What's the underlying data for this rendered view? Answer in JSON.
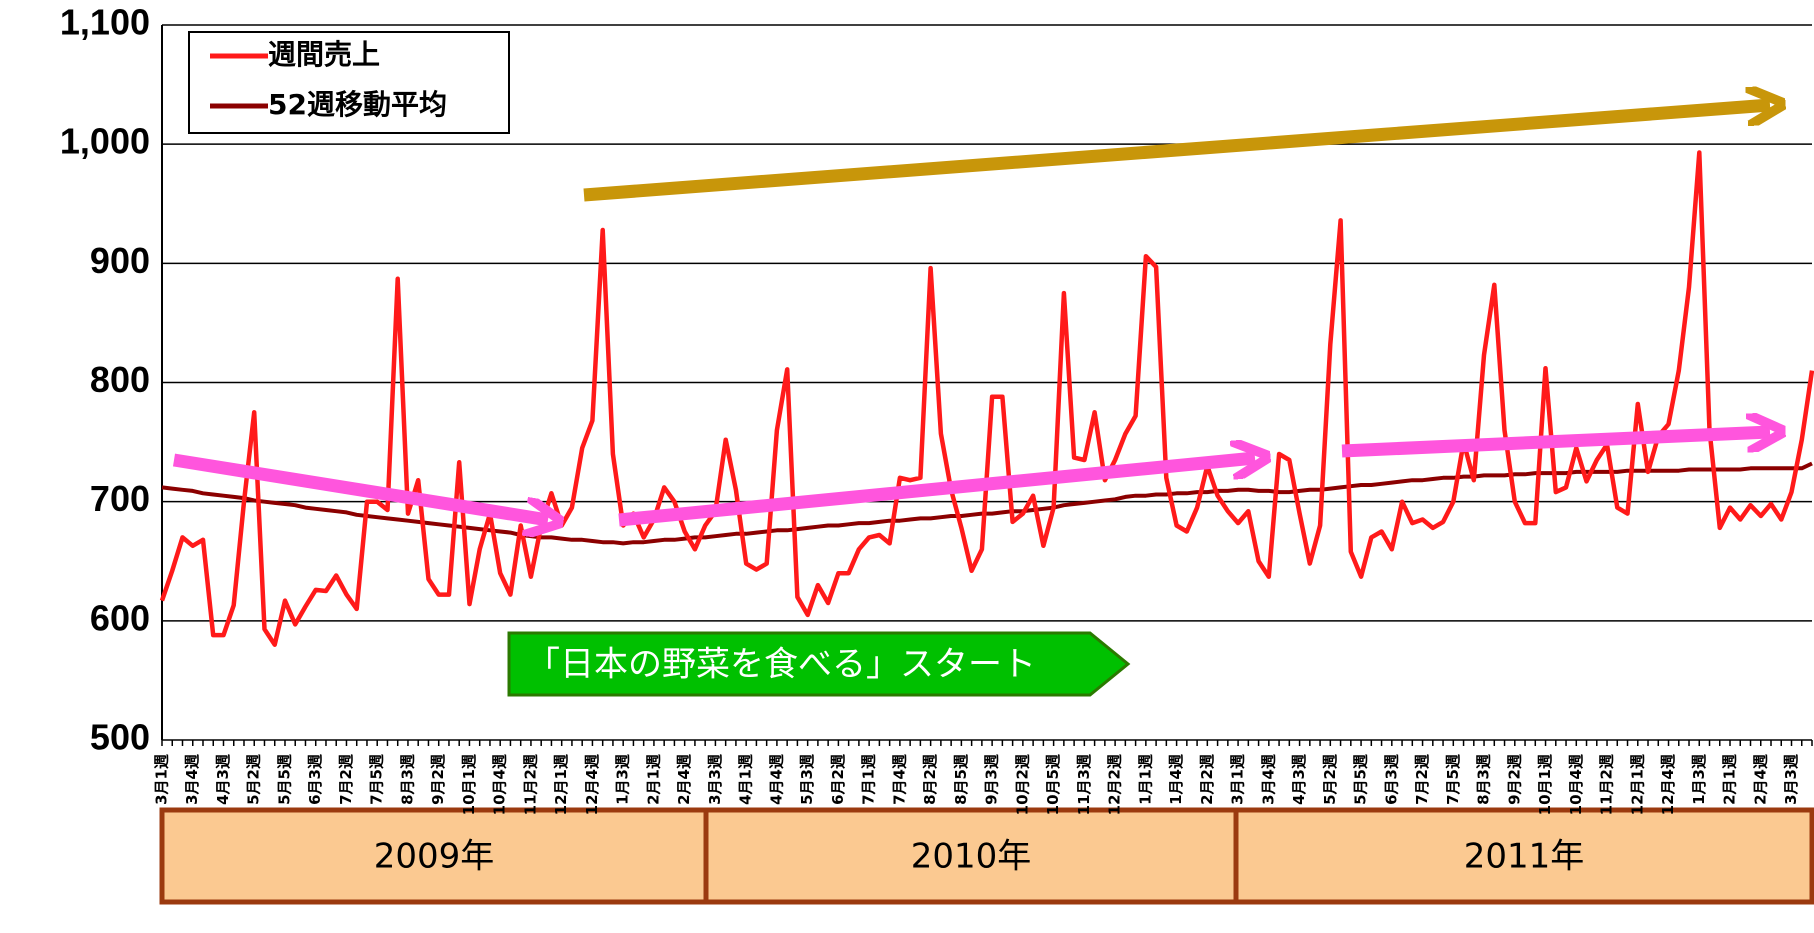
{
  "chart_data": {
    "type": "line",
    "ylim": [
      500,
      1100
    ],
    "yticks": [
      500,
      600,
      700,
      800,
      900,
      {
        "value": 1000,
        "label": "1,000"
      },
      {
        "value": 1100,
        "label": "1,100"
      }
    ],
    "grid": true,
    "legend": "upper left",
    "annotation": "「日本の野菜を食べる」スタート",
    "years": [
      "2009年",
      "2010年",
      "2011年"
    ],
    "categories": [
      "3月1週",
      null,
      null,
      "3月4週",
      null,
      null,
      "4月3週",
      null,
      null,
      "5月2週",
      null,
      null,
      "5月5週",
      null,
      null,
      "6月3週",
      null,
      null,
      "7月2週",
      null,
      null,
      "7月5週",
      null,
      null,
      "8月3週",
      null,
      null,
      "9月2週",
      null,
      null,
      "10月1週",
      null,
      null,
      "10月4週",
      null,
      null,
      "11月2週",
      null,
      null,
      "12月1週",
      null,
      null,
      "12月4週",
      null,
      null,
      "1月3週",
      null,
      null,
      "2月1週",
      null,
      null,
      "2月4週",
      null,
      null,
      "3月3週",
      null,
      null,
      "4月1週",
      null,
      null,
      "4月4週",
      null,
      null,
      "5月3週",
      null,
      null,
      "6月2週",
      null,
      null,
      "7月1週",
      null,
      null,
      "7月4週",
      null,
      null,
      "8月2週",
      null,
      null,
      "8月5週",
      null,
      null,
      "9月3週",
      null,
      null,
      "10月2週",
      null,
      null,
      "10月5週",
      null,
      null,
      "11月3週",
      null,
      null,
      "12月2週",
      null,
      null,
      "1月1週",
      null,
      null,
      "1月4週",
      null,
      null,
      "2月2週",
      null,
      null,
      "3月1週",
      null,
      null,
      "3月4週",
      null,
      null,
      "4月3週",
      null,
      null,
      "5月2週",
      null,
      null,
      "5月5週",
      null,
      null,
      "6月3週",
      null,
      null,
      "7月2週",
      null,
      null,
      "7月5週",
      null,
      null,
      "8月3週",
      null,
      null,
      "9月2週",
      null,
      null,
      "10月1週",
      null,
      null,
      "10月4週",
      null,
      null,
      "11月2週",
      null,
      null,
      "12月1週",
      null,
      null,
      "12月4週",
      null,
      null,
      "1月3週",
      null,
      null,
      "2月1週",
      null,
      null,
      "2月4週",
      null,
      null,
      "3月3週",
      null,
      null
    ],
    "series": [
      {
        "name": "週間売上",
        "color": "#ff1a1a",
        "values": [
          617,
          642,
          670,
          663,
          668,
          588,
          588,
          613,
          700,
          775,
          593,
          580,
          617,
          597,
          612,
          626,
          625,
          638,
          622,
          610,
          700,
          700,
          693,
          887,
          690,
          718,
          635,
          622,
          622,
          733,
          614,
          660,
          690,
          640,
          622,
          680,
          637,
          680,
          707,
          680,
          695,
          745,
          768,
          928,
          740,
          680,
          690,
          670,
          685,
          712,
          700,
          675,
          660,
          680,
          692,
          752,
          710,
          648,
          643,
          648,
          760,
          811,
          620,
          605,
          630,
          615,
          640,
          640,
          660,
          670,
          672,
          665,
          720,
          718,
          720,
          896,
          757,
          710,
          678,
          642,
          660,
          788,
          788,
          683,
          690,
          705,
          663,
          695,
          875,
          737,
          735,
          775,
          718,
          735,
          757,
          772,
          906,
          897,
          720,
          680,
          675,
          695,
          730,
          705,
          692,
          682,
          692,
          650,
          637,
          740,
          735,
          690,
          648,
          680,
          832,
          936,
          658,
          637,
          670,
          675,
          660,
          700,
          682,
          685,
          678,
          683,
          700,
          750,
          718,
          823,
          882,
          760,
          700,
          682,
          682,
          812,
          708,
          712,
          745,
          717,
          735,
          748,
          695,
          690,
          782,
          725,
          755,
          765,
          810,
          880,
          993,
          760,
          678,
          695,
          685,
          697,
          688,
          698,
          685,
          708,
          752,
          810
        ]
      },
      {
        "name": "52週移動平均",
        "color": "#8b0000",
        "values": [
          712,
          711,
          710,
          709,
          707,
          706,
          705,
          704,
          703,
          701,
          700,
          699,
          698,
          697,
          695,
          694,
          693,
          692,
          691,
          689,
          688,
          687,
          686,
          685,
          684,
          683,
          682,
          681,
          680,
          679,
          678,
          677,
          676,
          675,
          674,
          672,
          671,
          670,
          670,
          669,
          668,
          668,
          667,
          666,
          666,
          665,
          666,
          666,
          667,
          668,
          668,
          669,
          670,
          670,
          671,
          672,
          673,
          673,
          674,
          675,
          676,
          676,
          677,
          678,
          679,
          680,
          680,
          681,
          682,
          682,
          683,
          684,
          684,
          685,
          686,
          686,
          687,
          688,
          688,
          689,
          690,
          690,
          691,
          692,
          692,
          693,
          694,
          695,
          697,
          698,
          699,
          700,
          701,
          702,
          704,
          705,
          705,
          706,
          706,
          707,
          707,
          708,
          708,
          709,
          709,
          710,
          710,
          709,
          709,
          708,
          708,
          709,
          710,
          710,
          711,
          712,
          713,
          714,
          714,
          715,
          716,
          717,
          718,
          718,
          719,
          720,
          720,
          721,
          721,
          722,
          722,
          722,
          723,
          723,
          724,
          724,
          724,
          724,
          725,
          725,
          725,
          725,
          725,
          726,
          726,
          726,
          726,
          726,
          726,
          727,
          727,
          727,
          727,
          727,
          727,
          728,
          728,
          728,
          728,
          728,
          728,
          732
        ]
      }
    ]
  }
}
